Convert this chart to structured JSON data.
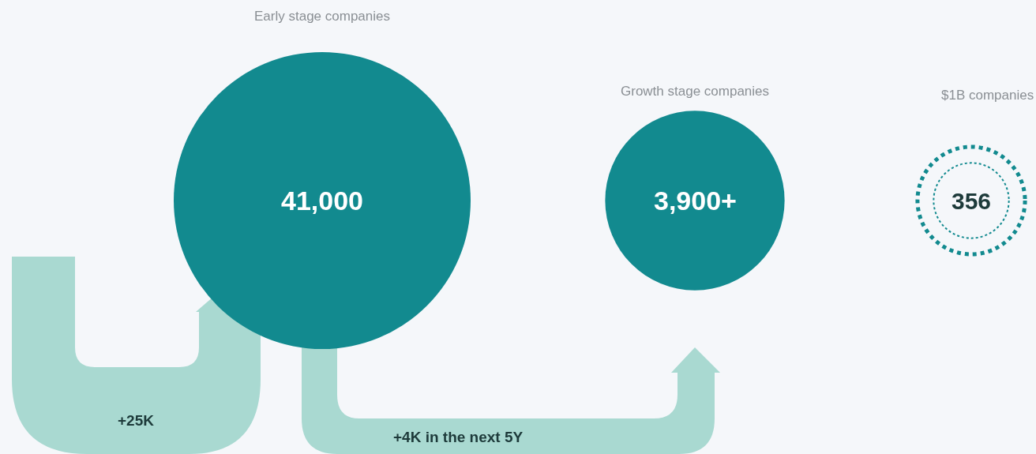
{
  "chart_data": {
    "type": "other",
    "categories": [
      "Early stage companies",
      "Growth stage companies",
      "$1B companies"
    ],
    "values": [
      41000,
      3900,
      356
    ],
    "value_labels": [
      "41,000",
      "3,900+",
      "356"
    ],
    "colors": [
      "#128a8f",
      "#128a8f",
      "#128a8f"
    ],
    "annotations": [
      "+25K",
      "+4K in the next 5Y"
    ]
  }
}
